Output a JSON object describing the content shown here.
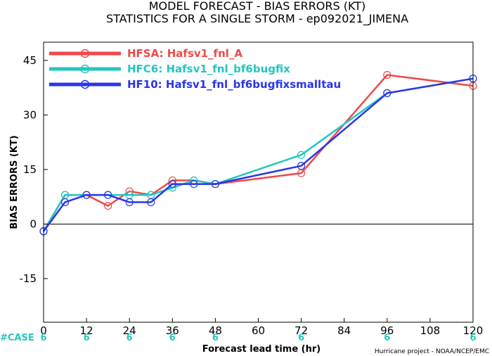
{
  "chart_data": {
    "type": "line",
    "title": "MODEL FORECAST - BIAS ERRORS (KT)",
    "subtitle": "STATISTICS FOR A SINGLE STORM - ep092021_JIMENA",
    "ylabel": "BIAS ERRORS (KT)",
    "xlabel": "Forecast lead time (hr)",
    "xlim": [
      0,
      120
    ],
    "ylim": [
      -27,
      50
    ],
    "x_ticks": [
      0,
      12,
      24,
      36,
      48,
      60,
      72,
      84,
      96,
      108,
      120
    ],
    "y_ticks": [
      -15,
      0,
      15,
      30,
      45
    ],
    "zero_line": true,
    "legend_position": "top-left",
    "series": [
      {
        "name": "HFSA: Hafsv1_fnl_A",
        "color": "#f04848",
        "x": [
          0,
          6,
          12,
          18,
          24,
          30,
          36,
          42,
          48,
          72,
          96,
          120
        ],
        "y": [
          -2,
          8,
          8,
          5,
          9,
          8,
          12,
          12,
          11,
          14,
          41,
          38
        ]
      },
      {
        "name": "HFC6: Hafsv1_fnl_bf6bugfix",
        "color": "#22c7c0",
        "x": [
          0,
          6,
          12,
          18,
          24,
          30,
          36,
          42,
          48,
          72,
          96,
          120
        ],
        "y": [
          -2,
          8,
          8,
          8,
          8,
          8,
          10,
          12,
          11,
          19,
          36,
          40
        ]
      },
      {
        "name": "HF10: Hafsv1_fnl_bf6bugfixsmalltau",
        "color": "#2a36e8",
        "x": [
          0,
          6,
          12,
          18,
          24,
          30,
          36,
          42,
          48,
          72,
          96,
          120
        ],
        "y": [
          -2,
          6,
          8,
          8,
          6,
          6,
          11,
          11,
          11,
          16,
          36,
          40
        ]
      }
    ],
    "case_label": "#CASE",
    "case_counts": [
      {
        "x": 0,
        "n": "6"
      },
      {
        "x": 12,
        "n": "6"
      },
      {
        "x": 24,
        "n": "6"
      },
      {
        "x": 36,
        "n": "6"
      },
      {
        "x": 48,
        "n": "6"
      },
      {
        "x": 72,
        "n": "6"
      },
      {
        "x": 96,
        "n": "6"
      },
      {
        "x": 120,
        "n": "6"
      }
    ],
    "credit": "Hurricane project - NOAA/NCEP/EMC"
  }
}
